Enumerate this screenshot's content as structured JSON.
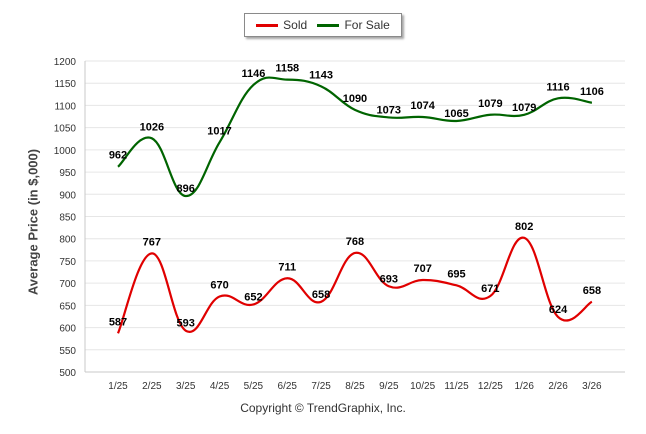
{
  "chart_data": {
    "type": "line",
    "categories": [
      "1/25",
      "2/25",
      "3/25",
      "4/25",
      "5/25",
      "6/25",
      "7/25",
      "8/25",
      "9/25",
      "10/25",
      "11/25",
      "12/25",
      "1/26",
      "2/26",
      "3/26"
    ],
    "series": [
      {
        "name": "Sold",
        "color": "#e00000",
        "values": [
          587,
          767,
          593,
          670,
          652,
          711,
          658,
          768,
          693,
          707,
          695,
          671,
          802,
          624,
          658
        ]
      },
      {
        "name": "For Sale",
        "color": "#006400",
        "values": [
          962,
          1026,
          896,
          1017,
          1146,
          1158,
          1143,
          1090,
          1073,
          1074,
          1065,
          1079,
          1079,
          1116,
          1106
        ]
      }
    ],
    "ylabel": "Average Price (in $,000)",
    "ylim": [
      500,
      1200
    ],
    "yticks": [
      500,
      550,
      600,
      650,
      700,
      750,
      800,
      850,
      900,
      950,
      1000,
      1050,
      1100,
      1150,
      1200
    ],
    "grid": true,
    "legend_position": "top-center",
    "footer": "Copyright © TrendGraphix, Inc."
  }
}
